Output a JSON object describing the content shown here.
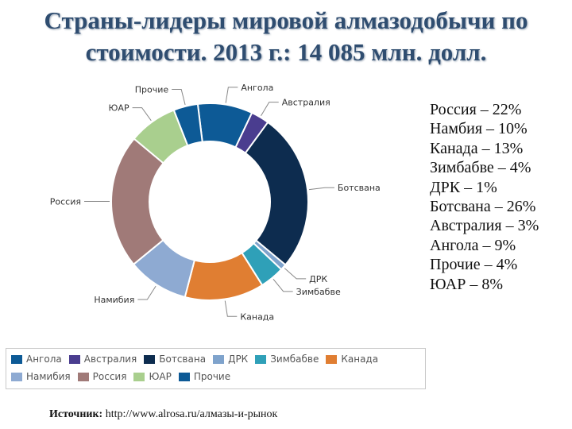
{
  "title": {
    "line1": "Страны-лидеры мировой алмазодобычи по",
    "line2": "стоимости. 2013 г.: 14 085 млн. долл."
  },
  "chart_data": {
    "type": "pie",
    "donut": true,
    "slices": [
      {
        "name": "Ангола",
        "value": 9,
        "color": "#0d5a96"
      },
      {
        "name": "Австралия",
        "value": 3,
        "color": "#4a3d8f"
      },
      {
        "name": "Ботсвана",
        "value": 26,
        "color": "#0d2c4f"
      },
      {
        "name": "ДРК",
        "value": 1,
        "color": "#7fa3cc"
      },
      {
        "name": "Зимбабве",
        "value": 4,
        "color": "#2fa0b8"
      },
      {
        "name": "Канада",
        "value": 13,
        "color": "#e07e32"
      },
      {
        "name": "Намибия",
        "value": 10,
        "color": "#8eaad2"
      },
      {
        "name": "Россия",
        "value": 22,
        "color": "#a07a78"
      },
      {
        "name": "ЮАР",
        "value": 8,
        "color": "#a9cf8e"
      },
      {
        "name": "Прочие",
        "value": 4,
        "color": "#0d5a96"
      }
    ],
    "legend_position": "bottom"
  },
  "side_list": [
    "Россия – 22%",
    "Намбия – 10%",
    "Канада – 13%",
    "Зимбабве – 4%",
    "ДРК – 1%",
    "Ботсвана – 26%",
    "Австралия – 3%",
    "Ангола – 9%",
    "Прочие – 4%",
    "ЮАР – 8%"
  ],
  "legend": {
    "row1": [
      "Ангола",
      "Австралия",
      "Ботсвана",
      "ДРК",
      "Зимбабве",
      "Канада"
    ],
    "row2": [
      "Намибия",
      "Россия",
      "ЮАР",
      "Прочие"
    ]
  },
  "source": {
    "label": "Источник:",
    "url": "http://www.alrosa.ru/алмазы-и-рынок"
  }
}
